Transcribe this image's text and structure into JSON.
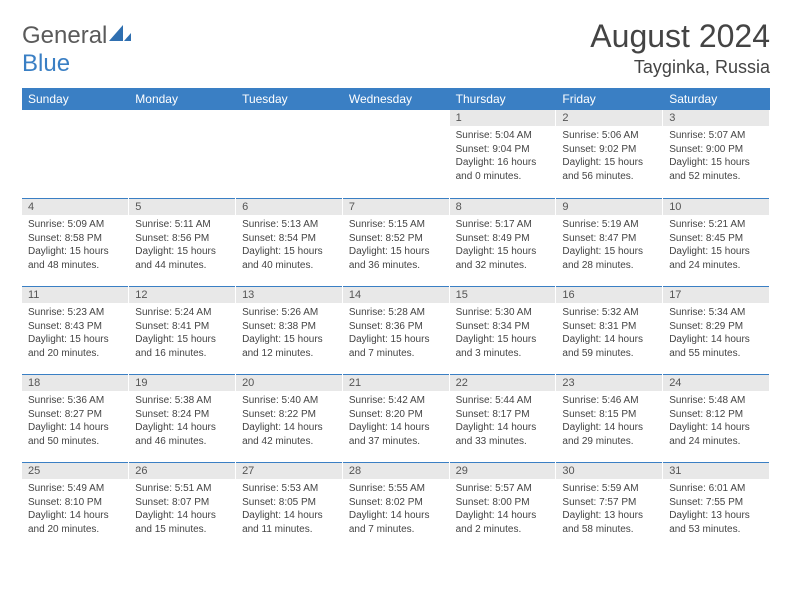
{
  "brand": {
    "part1": "General",
    "part2": "Blue"
  },
  "title": "August 2024",
  "location": "Tayginka, Russia",
  "colors": {
    "header_bg": "#3a7fc4",
    "daynum_bg": "#e8e8e8",
    "row_rule": "#3a7fc4",
    "text": "#444444"
  },
  "weekdays": [
    "Sunday",
    "Monday",
    "Tuesday",
    "Wednesday",
    "Thursday",
    "Friday",
    "Saturday"
  ],
  "weeks": [
    [
      {
        "n": "",
        "sr": "",
        "ss": "",
        "dl": ""
      },
      {
        "n": "",
        "sr": "",
        "ss": "",
        "dl": ""
      },
      {
        "n": "",
        "sr": "",
        "ss": "",
        "dl": ""
      },
      {
        "n": "",
        "sr": "",
        "ss": "",
        "dl": ""
      },
      {
        "n": "1",
        "sr": "Sunrise: 5:04 AM",
        "ss": "Sunset: 9:04 PM",
        "dl": "Daylight: 16 hours and 0 minutes."
      },
      {
        "n": "2",
        "sr": "Sunrise: 5:06 AM",
        "ss": "Sunset: 9:02 PM",
        "dl": "Daylight: 15 hours and 56 minutes."
      },
      {
        "n": "3",
        "sr": "Sunrise: 5:07 AM",
        "ss": "Sunset: 9:00 PM",
        "dl": "Daylight: 15 hours and 52 minutes."
      }
    ],
    [
      {
        "n": "4",
        "sr": "Sunrise: 5:09 AM",
        "ss": "Sunset: 8:58 PM",
        "dl": "Daylight: 15 hours and 48 minutes."
      },
      {
        "n": "5",
        "sr": "Sunrise: 5:11 AM",
        "ss": "Sunset: 8:56 PM",
        "dl": "Daylight: 15 hours and 44 minutes."
      },
      {
        "n": "6",
        "sr": "Sunrise: 5:13 AM",
        "ss": "Sunset: 8:54 PM",
        "dl": "Daylight: 15 hours and 40 minutes."
      },
      {
        "n": "7",
        "sr": "Sunrise: 5:15 AM",
        "ss": "Sunset: 8:52 PM",
        "dl": "Daylight: 15 hours and 36 minutes."
      },
      {
        "n": "8",
        "sr": "Sunrise: 5:17 AM",
        "ss": "Sunset: 8:49 PM",
        "dl": "Daylight: 15 hours and 32 minutes."
      },
      {
        "n": "9",
        "sr": "Sunrise: 5:19 AM",
        "ss": "Sunset: 8:47 PM",
        "dl": "Daylight: 15 hours and 28 minutes."
      },
      {
        "n": "10",
        "sr": "Sunrise: 5:21 AM",
        "ss": "Sunset: 8:45 PM",
        "dl": "Daylight: 15 hours and 24 minutes."
      }
    ],
    [
      {
        "n": "11",
        "sr": "Sunrise: 5:23 AM",
        "ss": "Sunset: 8:43 PM",
        "dl": "Daylight: 15 hours and 20 minutes."
      },
      {
        "n": "12",
        "sr": "Sunrise: 5:24 AM",
        "ss": "Sunset: 8:41 PM",
        "dl": "Daylight: 15 hours and 16 minutes."
      },
      {
        "n": "13",
        "sr": "Sunrise: 5:26 AM",
        "ss": "Sunset: 8:38 PM",
        "dl": "Daylight: 15 hours and 12 minutes."
      },
      {
        "n": "14",
        "sr": "Sunrise: 5:28 AM",
        "ss": "Sunset: 8:36 PM",
        "dl": "Daylight: 15 hours and 7 minutes."
      },
      {
        "n": "15",
        "sr": "Sunrise: 5:30 AM",
        "ss": "Sunset: 8:34 PM",
        "dl": "Daylight: 15 hours and 3 minutes."
      },
      {
        "n": "16",
        "sr": "Sunrise: 5:32 AM",
        "ss": "Sunset: 8:31 PM",
        "dl": "Daylight: 14 hours and 59 minutes."
      },
      {
        "n": "17",
        "sr": "Sunrise: 5:34 AM",
        "ss": "Sunset: 8:29 PM",
        "dl": "Daylight: 14 hours and 55 minutes."
      }
    ],
    [
      {
        "n": "18",
        "sr": "Sunrise: 5:36 AM",
        "ss": "Sunset: 8:27 PM",
        "dl": "Daylight: 14 hours and 50 minutes."
      },
      {
        "n": "19",
        "sr": "Sunrise: 5:38 AM",
        "ss": "Sunset: 8:24 PM",
        "dl": "Daylight: 14 hours and 46 minutes."
      },
      {
        "n": "20",
        "sr": "Sunrise: 5:40 AM",
        "ss": "Sunset: 8:22 PM",
        "dl": "Daylight: 14 hours and 42 minutes."
      },
      {
        "n": "21",
        "sr": "Sunrise: 5:42 AM",
        "ss": "Sunset: 8:20 PM",
        "dl": "Daylight: 14 hours and 37 minutes."
      },
      {
        "n": "22",
        "sr": "Sunrise: 5:44 AM",
        "ss": "Sunset: 8:17 PM",
        "dl": "Daylight: 14 hours and 33 minutes."
      },
      {
        "n": "23",
        "sr": "Sunrise: 5:46 AM",
        "ss": "Sunset: 8:15 PM",
        "dl": "Daylight: 14 hours and 29 minutes."
      },
      {
        "n": "24",
        "sr": "Sunrise: 5:48 AM",
        "ss": "Sunset: 8:12 PM",
        "dl": "Daylight: 14 hours and 24 minutes."
      }
    ],
    [
      {
        "n": "25",
        "sr": "Sunrise: 5:49 AM",
        "ss": "Sunset: 8:10 PM",
        "dl": "Daylight: 14 hours and 20 minutes."
      },
      {
        "n": "26",
        "sr": "Sunrise: 5:51 AM",
        "ss": "Sunset: 8:07 PM",
        "dl": "Daylight: 14 hours and 15 minutes."
      },
      {
        "n": "27",
        "sr": "Sunrise: 5:53 AM",
        "ss": "Sunset: 8:05 PM",
        "dl": "Daylight: 14 hours and 11 minutes."
      },
      {
        "n": "28",
        "sr": "Sunrise: 5:55 AM",
        "ss": "Sunset: 8:02 PM",
        "dl": "Daylight: 14 hours and 7 minutes."
      },
      {
        "n": "29",
        "sr": "Sunrise: 5:57 AM",
        "ss": "Sunset: 8:00 PM",
        "dl": "Daylight: 14 hours and 2 minutes."
      },
      {
        "n": "30",
        "sr": "Sunrise: 5:59 AM",
        "ss": "Sunset: 7:57 PM",
        "dl": "Daylight: 13 hours and 58 minutes."
      },
      {
        "n": "31",
        "sr": "Sunrise: 6:01 AM",
        "ss": "Sunset: 7:55 PM",
        "dl": "Daylight: 13 hours and 53 minutes."
      }
    ]
  ]
}
